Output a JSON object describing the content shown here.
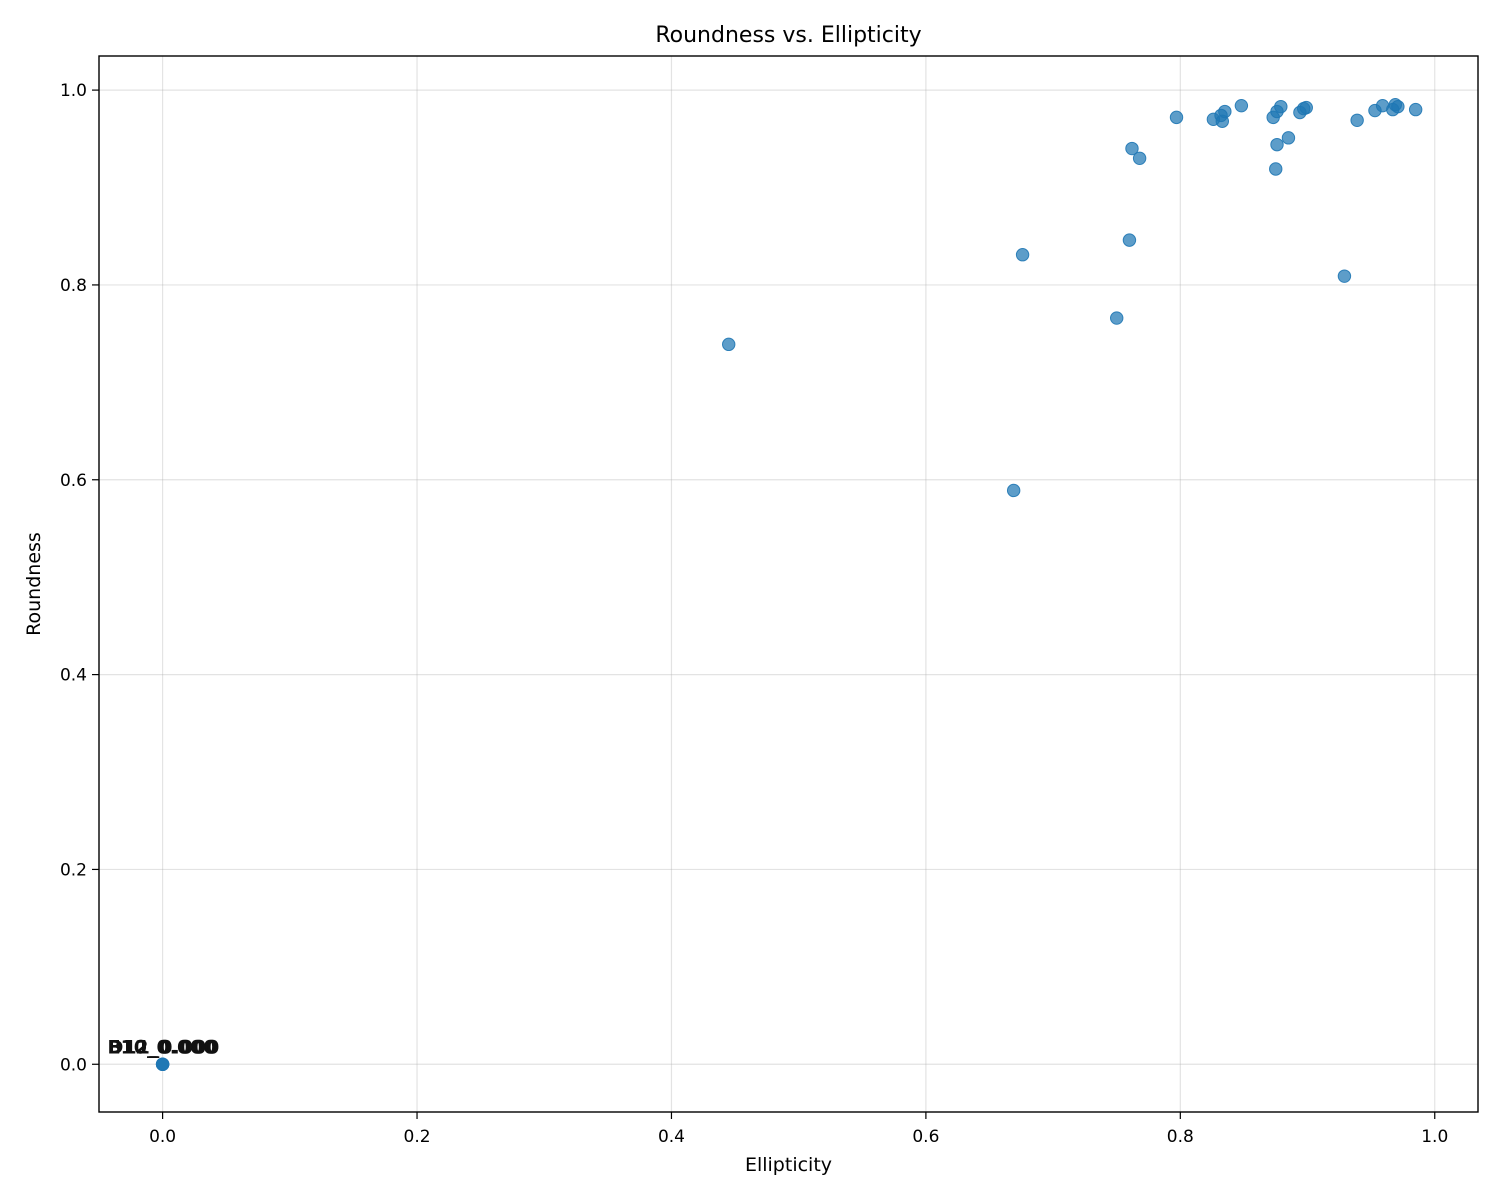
{
  "chart_data": {
    "type": "scatter",
    "title": "Roundness vs. Ellipticity",
    "xlabel": "Ellipticity",
    "ylabel": "Roundness",
    "xlim": [
      -0.05,
      1.034
    ],
    "ylim": [
      -0.049,
      1.035
    ],
    "grid": true,
    "legend": "none",
    "point_color": "#1f77b4",
    "x_ticks": [
      0.0,
      0.2,
      0.4,
      0.6,
      0.8,
      1.0
    ],
    "x_tick_labels": [
      "0.0",
      "0.2",
      "0.4",
      "0.6",
      "0.8",
      "1.0"
    ],
    "y_ticks": [
      0.0,
      0.2,
      0.4,
      0.6,
      0.8,
      1.0
    ],
    "y_tick_labels": [
      "0.0",
      "0.2",
      "0.4",
      "0.6",
      "0.8",
      "1.0"
    ],
    "points": [
      {
        "x": 0.0,
        "y": 0.0
      },
      {
        "x": 0.0,
        "y": 0.0
      },
      {
        "x": 0.0,
        "y": 0.0
      },
      {
        "x": 0.0,
        "y": 0.0
      },
      {
        "x": 0.445,
        "y": 0.739
      },
      {
        "x": 0.669,
        "y": 0.589
      },
      {
        "x": 0.676,
        "y": 0.831
      },
      {
        "x": 0.75,
        "y": 0.766
      },
      {
        "x": 0.76,
        "y": 0.846
      },
      {
        "x": 0.762,
        "y": 0.94
      },
      {
        "x": 0.768,
        "y": 0.93
      },
      {
        "x": 0.797,
        "y": 0.972
      },
      {
        "x": 0.826,
        "y": 0.97
      },
      {
        "x": 0.832,
        "y": 0.974
      },
      {
        "x": 0.833,
        "y": 0.968
      },
      {
        "x": 0.835,
        "y": 0.978
      },
      {
        "x": 0.848,
        "y": 0.984
      },
      {
        "x": 0.873,
        "y": 0.972
      },
      {
        "x": 0.875,
        "y": 0.919
      },
      {
        "x": 0.876,
        "y": 0.944
      },
      {
        "x": 0.876,
        "y": 0.978
      },
      {
        "x": 0.879,
        "y": 0.983
      },
      {
        "x": 0.885,
        "y": 0.951
      },
      {
        "x": 0.894,
        "y": 0.977
      },
      {
        "x": 0.897,
        "y": 0.981
      },
      {
        "x": 0.899,
        "y": 0.982
      },
      {
        "x": 0.929,
        "y": 0.809
      },
      {
        "x": 0.939,
        "y": 0.969
      },
      {
        "x": 0.953,
        "y": 0.979
      },
      {
        "x": 0.959,
        "y": 0.984
      },
      {
        "x": 0.967,
        "y": 0.98
      },
      {
        "x": 0.969,
        "y": 0.985
      },
      {
        "x": 0.971,
        "y": 0.983
      },
      {
        "x": 0.985,
        "y": 0.98
      }
    ],
    "annotations": [
      {
        "text": "B12_0.000",
        "x": 0.0,
        "y": 0.0
      },
      {
        "text": "E10_0.000",
        "x": 0.0,
        "y": 0.0
      },
      {
        "text": "D11_0.000",
        "x": 0.0,
        "y": 0.0
      }
    ]
  }
}
